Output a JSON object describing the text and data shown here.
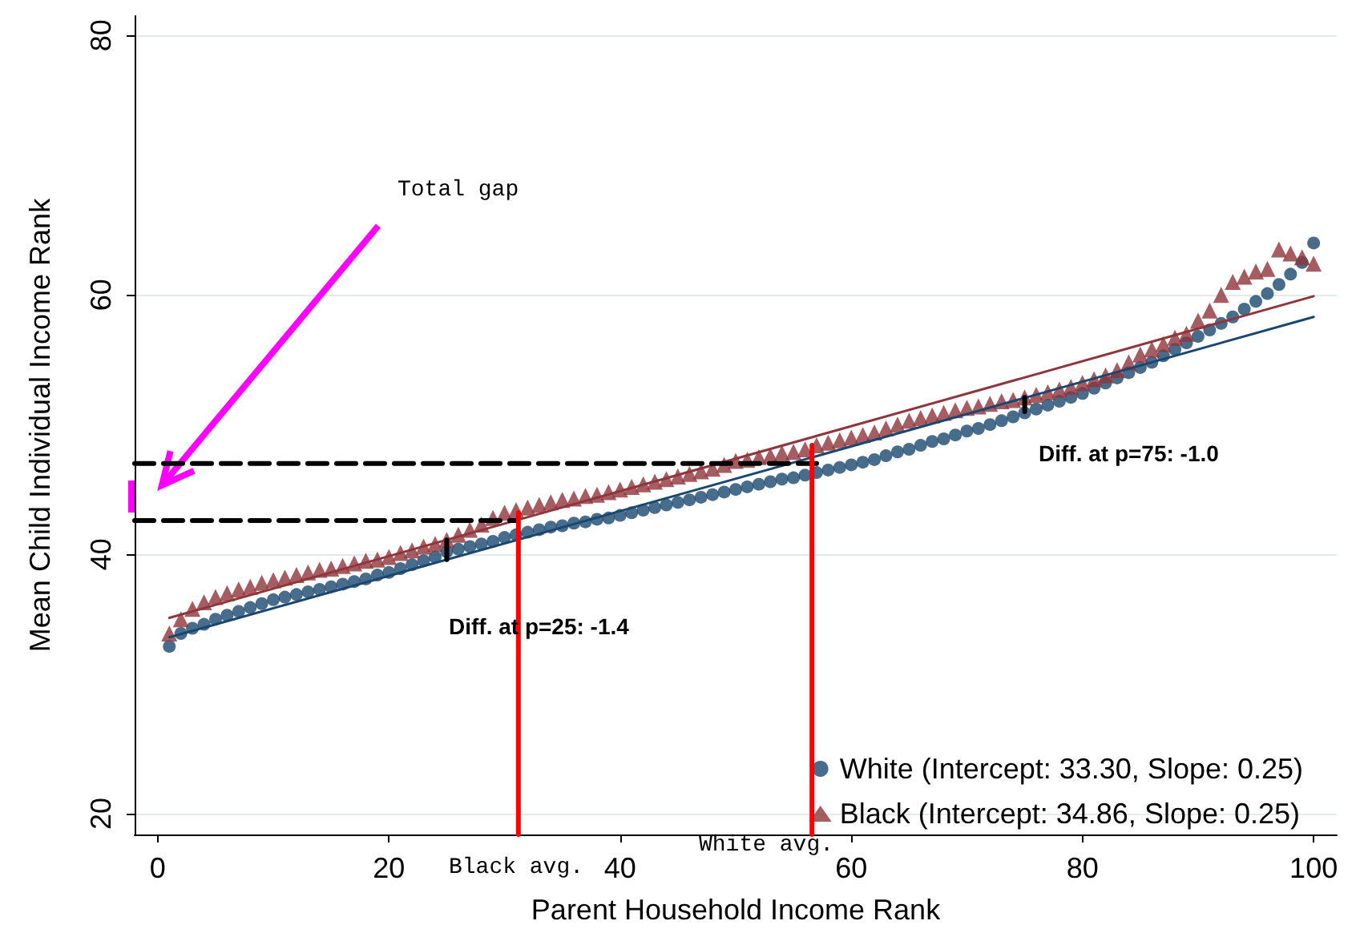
{
  "chart_data": {
    "type": "scatter",
    "xlabel": "Parent Household Income Rank",
    "ylabel": "Mean Child Individual Income Rank",
    "xlim": [
      -2,
      102
    ],
    "ylim": [
      18.4,
      81.5
    ],
    "xticks": [
      0,
      20,
      40,
      60,
      80,
      100
    ],
    "yticks": [
      20,
      40,
      60,
      80
    ],
    "grid": "y",
    "legend": "bottom right",
    "x": [
      1,
      2,
      3,
      4,
      5,
      6,
      7,
      8,
      9,
      10,
      11,
      12,
      13,
      14,
      15,
      16,
      17,
      18,
      19,
      20,
      21,
      22,
      23,
      24,
      25,
      26,
      27,
      28,
      29,
      30,
      31,
      32,
      33,
      34,
      35,
      36,
      37,
      38,
      39,
      40,
      41,
      42,
      43,
      44,
      45,
      46,
      47,
      48,
      49,
      50,
      51,
      52,
      53,
      54,
      55,
      56,
      57,
      58,
      59,
      60,
      61,
      62,
      63,
      64,
      65,
      66,
      67,
      68,
      69,
      70,
      71,
      72,
      73,
      74,
      75,
      76,
      77,
      78,
      79,
      80,
      81,
      82,
      83,
      84,
      85,
      86,
      87,
      88,
      89,
      90,
      91,
      92,
      93,
      94,
      95,
      96,
      97,
      98,
      99,
      100
    ],
    "series": [
      {
        "name": "White (Intercept: 33.30, Slope: 0.25)",
        "type": "scatter",
        "marker": "circle",
        "color": "#1a476f",
        "values": [
          32.9,
          33.9,
          34.3,
          34.6,
          35.0,
          35.3,
          35.6,
          35.9,
          36.2,
          36.5,
          36.7,
          36.9,
          37.1,
          37.3,
          37.5,
          37.7,
          37.9,
          38.1,
          38.4,
          38.6,
          38.9,
          39.2,
          39.5,
          39.8,
          40.2,
          40.4,
          40.6,
          40.8,
          41.0,
          41.3,
          41.5,
          41.7,
          41.9,
          42.1,
          42.2,
          42.4,
          42.5,
          42.7,
          42.8,
          43.0,
          43.2,
          43.4,
          43.6,
          43.8,
          44.0,
          44.2,
          44.4,
          44.6,
          44.8,
          45.0,
          45.2,
          45.4,
          45.6,
          45.8,
          45.9,
          46.1,
          46.3,
          46.5,
          46.7,
          46.9,
          47.1,
          47.3,
          47.6,
          47.9,
          48.1,
          48.4,
          48.7,
          48.9,
          49.2,
          49.5,
          49.7,
          50.0,
          50.3,
          50.6,
          50.9,
          51.2,
          51.5,
          51.8,
          52.1,
          52.4,
          52.8,
          53.2,
          53.6,
          54.0,
          54.4,
          54.8,
          55.3,
          55.8,
          56.3,
          56.8,
          57.3,
          57.8,
          58.3,
          58.9,
          59.5,
          60.1,
          60.8,
          61.6,
          62.5,
          64.0
        ]
      },
      {
        "name": "Black (Intercept: 34.86, Slope: 0.25)",
        "type": "scatter",
        "marker": "triangle",
        "color": "#90353b",
        "values": [
          33.9,
          35.0,
          35.8,
          36.3,
          36.7,
          37.0,
          37.3,
          37.5,
          37.8,
          38.0,
          38.2,
          38.4,
          38.6,
          38.8,
          38.9,
          39.1,
          39.3,
          39.5,
          39.6,
          39.8,
          40.1,
          40.3,
          40.6,
          40.8,
          41.1,
          41.5,
          41.9,
          42.3,
          42.8,
          43.2,
          43.4,
          43.6,
          43.8,
          44.0,
          44.2,
          44.3,
          44.5,
          44.6,
          44.8,
          45.0,
          45.2,
          45.4,
          45.6,
          45.8,
          46.0,
          46.2,
          46.4,
          46.6,
          46.9,
          47.2,
          47.3,
          47.5,
          47.6,
          47.8,
          47.9,
          48.1,
          48.4,
          48.6,
          48.8,
          49.0,
          49.2,
          49.4,
          49.7,
          50.0,
          50.3,
          50.5,
          50.7,
          50.9,
          51.1,
          51.3,
          51.4,
          51.6,
          51.8,
          51.9,
          52.1,
          52.3,
          52.5,
          52.7,
          52.9,
          53.2,
          53.5,
          53.8,
          54.2,
          54.8,
          55.4,
          55.8,
          56.2,
          56.7,
          57.0,
          58.0,
          58.8,
          60.0,
          61.0,
          61.4,
          61.8,
          62.0,
          63.5,
          63.2,
          62.9,
          62.4
        ]
      },
      {
        "type": "line",
        "marker": "none",
        "line_style": "solid",
        "color": "#1a476f",
        "x": [
          1,
          100
        ],
        "values": [
          33.6,
          58.3
        ]
      },
      {
        "type": "line",
        "marker": "none",
        "line_style": "solid",
        "color": "#90353b",
        "x": [
          1,
          100
        ],
        "values": [
          35.1,
          59.9
        ]
      },
      {
        "type": "line",
        "marker": "none",
        "line_style": "dashed",
        "color": "#000000",
        "x": [
          -2,
          57
        ],
        "values": [
          47.0,
          47.0
        ]
      },
      {
        "type": "line",
        "marker": "none",
        "line_style": "dashed",
        "color": "#000000",
        "x": [
          -2,
          31
        ],
        "values": [
          42.6,
          42.6
        ]
      },
      {
        "type": "line",
        "marker": "none",
        "line_style": "solid",
        "color": "#ff0000",
        "x": [
          31.2,
          31.2
        ],
        "values": [
          18.4,
          43.2
        ]
      },
      {
        "type": "line",
        "marker": "none",
        "line_style": "solid",
        "color": "#ff0000",
        "x": [
          56.6,
          56.6
        ],
        "values": [
          18.4,
          48.4
        ]
      },
      {
        "type": "line",
        "marker": "none",
        "line_style": "solid",
        "color": "#000000",
        "x": [
          25,
          25
        ],
        "values": [
          39.6,
          41.1
        ]
      },
      {
        "type": "line",
        "marker": "none",
        "line_style": "solid",
        "color": "#000000",
        "x": [
          75,
          75
        ],
        "values": [
          51.0,
          52.1
        ]
      }
    ],
    "annotations": [
      "Total gap",
      "Diff. at p=25: -1.4",
      "Diff. at p=75: -1.0",
      "Black avg.",
      "White avg."
    ]
  }
}
